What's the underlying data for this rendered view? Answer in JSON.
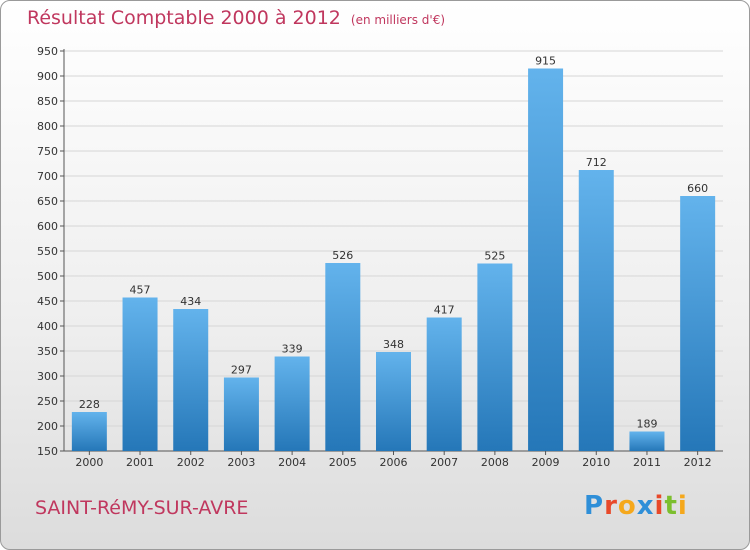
{
  "title": "Résultat Comptable 2000 à 2012",
  "unit_label": "(en milliers d'€)",
  "commune": "SAINT-RéMY-SUR-AVRE",
  "logo": {
    "text": "Proxiti",
    "letter_colors": [
      "#2f8fd8",
      "#e8492a",
      "#f5a81c",
      "#2f8fd8",
      "#e8492a",
      "#7cbf2e",
      "#f5a81c"
    ]
  },
  "colors": {
    "title": "#c0375e",
    "bar_top": "#63b3ec",
    "bar_bottom": "#2577b8",
    "grid": "#d6d6d6",
    "axis": "#555555"
  },
  "chart_data": {
    "type": "bar",
    "categories": [
      "2000",
      "2001",
      "2002",
      "2003",
      "2004",
      "2005",
      "2006",
      "2007",
      "2008",
      "2009",
      "2010",
      "2011",
      "2012"
    ],
    "values": [
      228,
      457,
      434,
      297,
      339,
      526,
      348,
      417,
      525,
      915,
      712,
      189,
      660
    ],
    "ylim": [
      150,
      950
    ],
    "yticks": [
      150,
      200,
      250,
      300,
      350,
      400,
      450,
      500,
      550,
      600,
      650,
      700,
      750,
      800,
      850,
      900,
      950
    ],
    "grid": "horizontal",
    "xlabel": "",
    "ylabel": "",
    "data_labels": true
  }
}
